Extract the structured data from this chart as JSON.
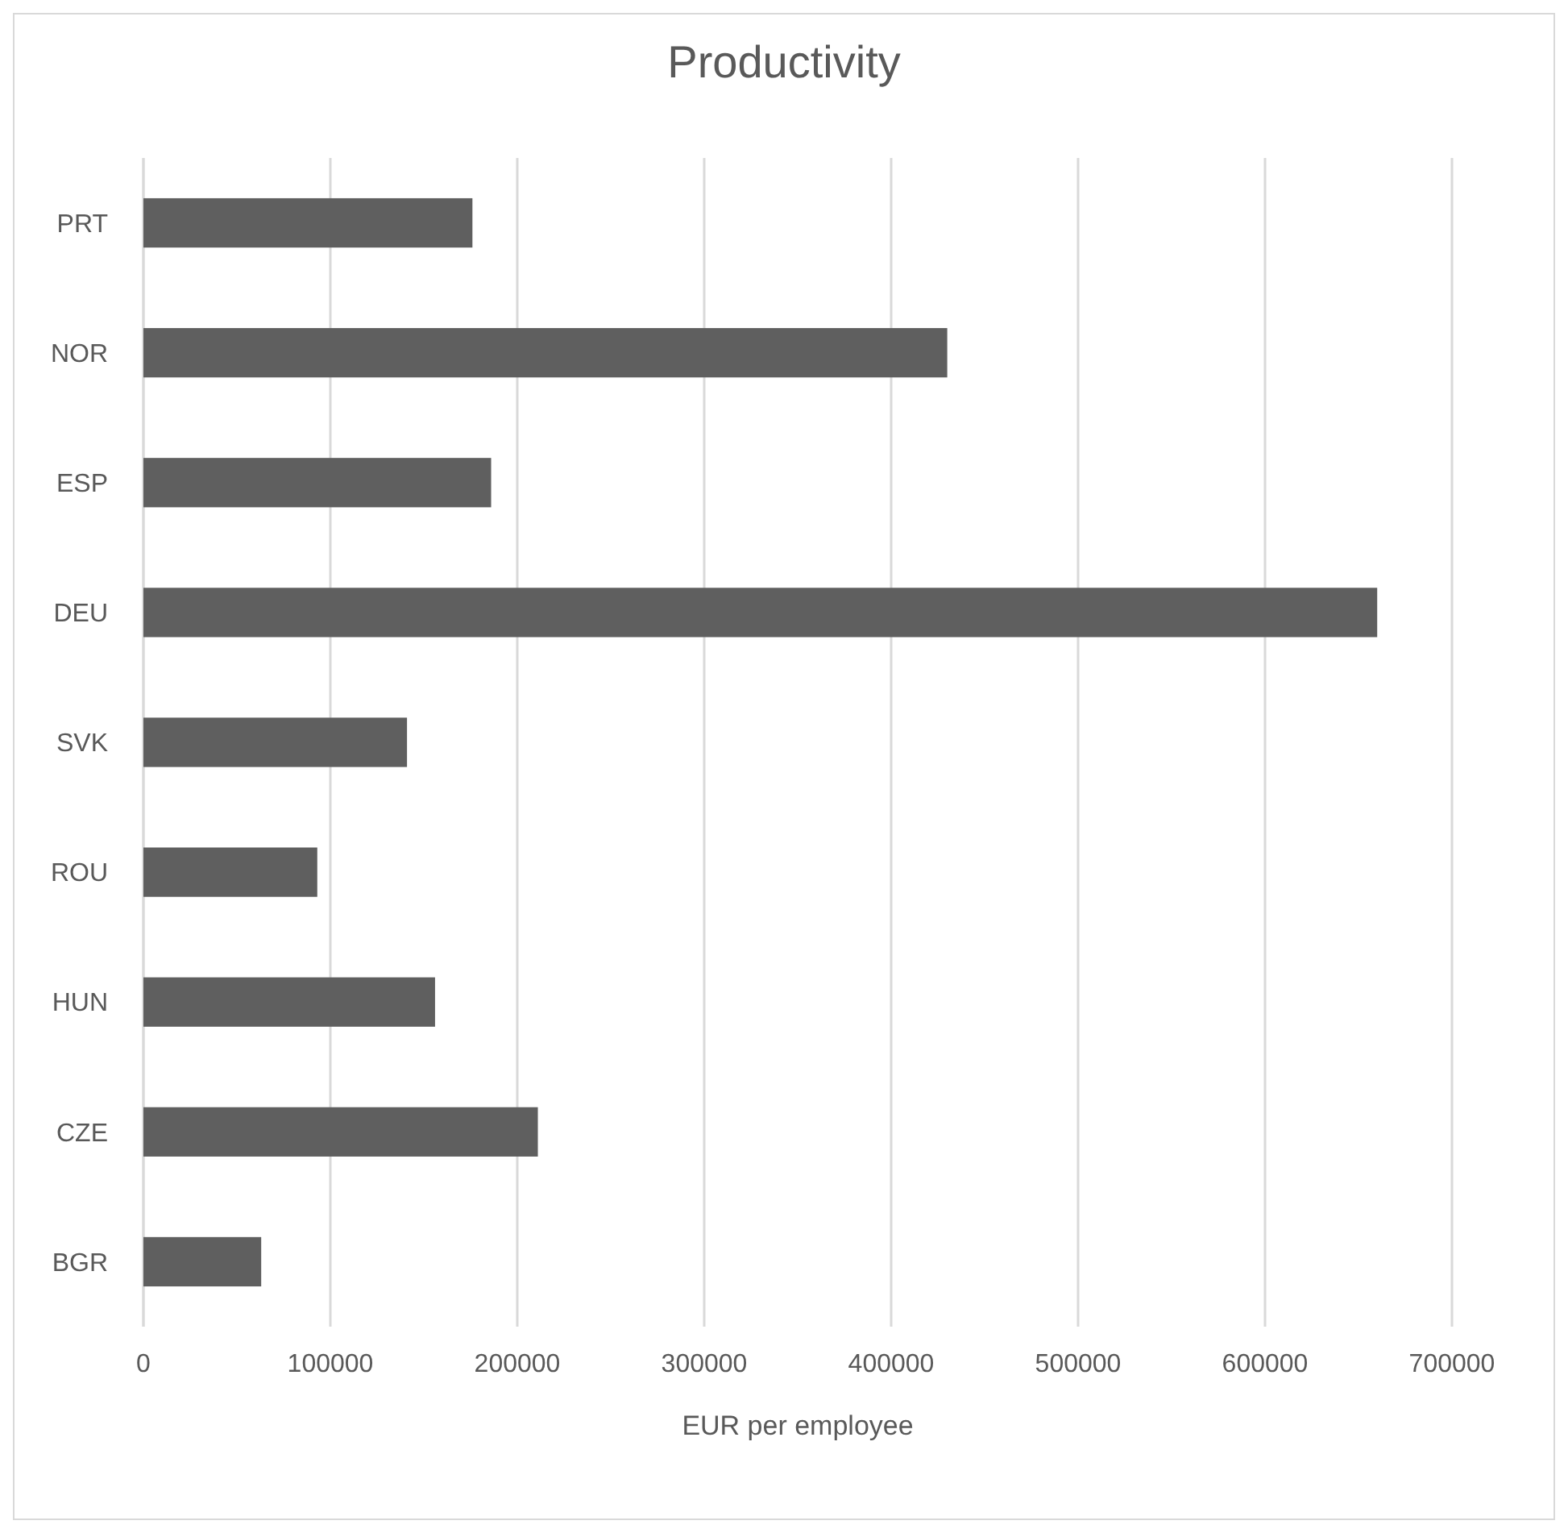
{
  "chart_data": {
    "type": "bar",
    "orientation": "horizontal",
    "title": "Productivity",
    "xlabel": "EUR per employee",
    "categories": [
      "PRT",
      "NOR",
      "ESP",
      "DEU",
      "SVK",
      "ROU",
      "HUN",
      "CZE",
      "BGR"
    ],
    "values": [
      176000,
      430000,
      186000,
      660000,
      141000,
      93000,
      156000,
      211000,
      63000
    ],
    "color": "#5f5f5f",
    "xlim": [
      0,
      700000
    ],
    "xticks": [
      0,
      100000,
      200000,
      300000,
      400000,
      500000,
      600000,
      700000
    ],
    "grid": "x"
  }
}
